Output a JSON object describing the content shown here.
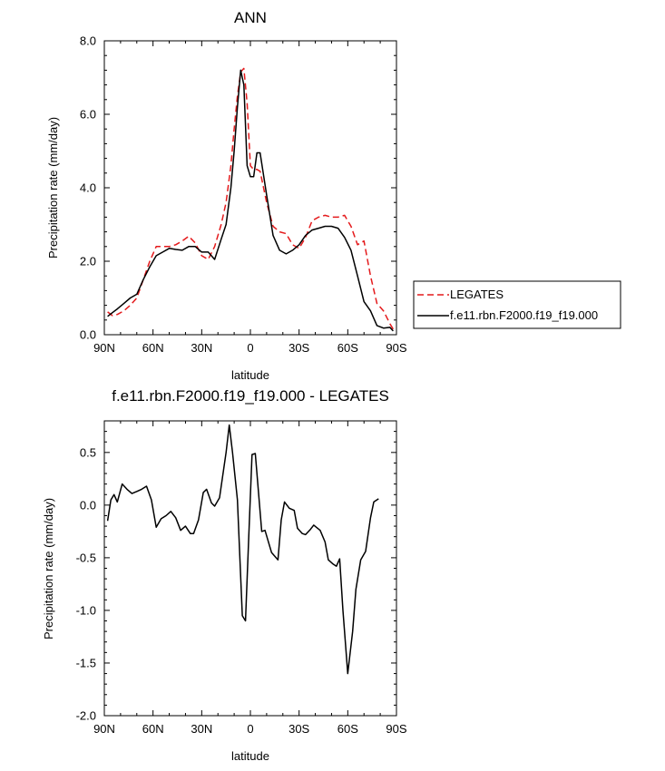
{
  "chart_data": [
    {
      "type": "line",
      "title": "ANN",
      "xlabel": "latitude",
      "ylabel": "Precipitation rate (mm/day)",
      "xlim": [
        90,
        -90
      ],
      "ylim": [
        0.0,
        8.0
      ],
      "x_ticks": [
        90,
        60,
        30,
        0,
        -30,
        -60,
        -90
      ],
      "x_tick_labels": [
        "90N",
        "60N",
        "30N",
        "0",
        "30S",
        "60S",
        "90S"
      ],
      "y_ticks": [
        0.0,
        2.0,
        4.0,
        6.0,
        8.0
      ],
      "y_tick_labels": [
        "0.0",
        "2.0",
        "4.0",
        "6.0",
        "8.0"
      ],
      "legend_position": "right",
      "series": [
        {
          "name": "LEGATES",
          "color": "#e41a1c",
          "dash": "dashed",
          "points": [
            [
              88,
              0.62
            ],
            [
              85,
              0.52
            ],
            [
              82,
              0.55
            ],
            [
              78,
              0.65
            ],
            [
              74,
              0.8
            ],
            [
              70,
              1.0
            ],
            [
              66,
              1.5
            ],
            [
              62,
              2.0
            ],
            [
              58,
              2.4
            ],
            [
              54,
              2.4
            ],
            [
              50,
              2.4
            ],
            [
              46,
              2.45
            ],
            [
              42,
              2.55
            ],
            [
              38,
              2.68
            ],
            [
              34,
              2.5
            ],
            [
              30,
              2.15
            ],
            [
              26,
              2.05
            ],
            [
              22,
              2.4
            ],
            [
              18,
              3.0
            ],
            [
              15,
              3.6
            ],
            [
              12,
              4.6
            ],
            [
              10,
              5.6
            ],
            [
              8,
              6.5
            ],
            [
              6,
              7.15
            ],
            [
              4,
              7.25
            ],
            [
              2,
              6.3
            ],
            [
              0,
              4.6
            ],
            [
              -2,
              4.5
            ],
            [
              -4,
              4.5
            ],
            [
              -6,
              4.45
            ],
            [
              -10,
              3.6
            ],
            [
              -14,
              2.95
            ],
            [
              -18,
              2.8
            ],
            [
              -22,
              2.75
            ],
            [
              -26,
              2.45
            ],
            [
              -30,
              2.35
            ],
            [
              -34,
              2.65
            ],
            [
              -38,
              3.1
            ],
            [
              -42,
              3.2
            ],
            [
              -46,
              3.25
            ],
            [
              -50,
              3.2
            ],
            [
              -54,
              3.2
            ],
            [
              -58,
              3.25
            ],
            [
              -62,
              2.95
            ],
            [
              -66,
              2.45
            ],
            [
              -70,
              2.55
            ],
            [
              -74,
              1.6
            ],
            [
              -78,
              0.85
            ],
            [
              -82,
              0.65
            ],
            [
              -86,
              0.3
            ],
            [
              -88,
              0.15
            ]
          ]
        },
        {
          "name": "f.e11.rbn.F2000.f19_f19.000",
          "color": "#000000",
          "dash": "solid",
          "points": [
            [
              88,
              0.5
            ],
            [
              85,
              0.6
            ],
            [
              82,
              0.7
            ],
            [
              78,
              0.85
            ],
            [
              74,
              1.0
            ],
            [
              70,
              1.1
            ],
            [
              66,
              1.5
            ],
            [
              62,
              1.85
            ],
            [
              58,
              2.15
            ],
            [
              54,
              2.25
            ],
            [
              50,
              2.35
            ],
            [
              46,
              2.32
            ],
            [
              42,
              2.3
            ],
            [
              38,
              2.4
            ],
            [
              34,
              2.4
            ],
            [
              30,
              2.25
            ],
            [
              26,
              2.25
            ],
            [
              22,
              2.05
            ],
            [
              18,
              2.6
            ],
            [
              15,
              3.0
            ],
            [
              12,
              4.0
            ],
            [
              10,
              5.0
            ],
            [
              8,
              6.2
            ],
            [
              6,
              7.2
            ],
            [
              4,
              6.8
            ],
            [
              2,
              4.6
            ],
            [
              0,
              4.3
            ],
            [
              -2,
              4.3
            ],
            [
              -4,
              4.95
            ],
            [
              -6,
              4.95
            ],
            [
              -10,
              3.8
            ],
            [
              -14,
              2.7
            ],
            [
              -18,
              2.3
            ],
            [
              -22,
              2.2
            ],
            [
              -26,
              2.3
            ],
            [
              -30,
              2.45
            ],
            [
              -34,
              2.7
            ],
            [
              -38,
              2.85
            ],
            [
              -42,
              2.9
            ],
            [
              -46,
              2.95
            ],
            [
              -50,
              2.95
            ],
            [
              -54,
              2.9
            ],
            [
              -58,
              2.65
            ],
            [
              -62,
              2.3
            ],
            [
              -66,
              1.6
            ],
            [
              -70,
              0.9
            ],
            [
              -74,
              0.65
            ],
            [
              -78,
              0.25
            ],
            [
              -82,
              0.18
            ],
            [
              -86,
              0.2
            ],
            [
              -88,
              0.1
            ]
          ]
        }
      ]
    },
    {
      "type": "line",
      "title": "f.e11.rbn.F2000.f19_f19.000 - LEGATES",
      "xlabel": "latitude",
      "ylabel": "Precipitation rate (mm/day)",
      "xlim": [
        90,
        -90
      ],
      "ylim": [
        -2.0,
        0.8
      ],
      "x_ticks": [
        90,
        60,
        30,
        0,
        -30,
        -60,
        -90
      ],
      "x_tick_labels": [
        "90N",
        "60N",
        "30N",
        "0",
        "30S",
        "60S",
        "90S"
      ],
      "y_ticks": [
        -2.0,
        -1.5,
        -1.0,
        -0.5,
        0.0,
        0.5
      ],
      "y_tick_labels": [
        "-2.0",
        "-1.5",
        "-1.0",
        "-0.5",
        "0.0",
        "0.5"
      ],
      "series": [
        {
          "color": "#000000",
          "dash": "solid",
          "points": [
            [
              88,
              -0.15
            ],
            [
              86,
              0.05
            ],
            [
              84,
              0.1
            ],
            [
              82,
              0.03
            ],
            [
              79,
              0.2
            ],
            [
              76,
              0.15
            ],
            [
              73,
              0.11
            ],
            [
              70,
              0.13
            ],
            [
              67,
              0.15
            ],
            [
              64,
              0.18
            ],
            [
              61,
              0.05
            ],
            [
              58,
              -0.21
            ],
            [
              55,
              -0.13
            ],
            [
              52,
              -0.1
            ],
            [
              49,
              -0.06
            ],
            [
              46,
              -0.12
            ],
            [
              43,
              -0.24
            ],
            [
              40,
              -0.2
            ],
            [
              37,
              -0.27
            ],
            [
              35,
              -0.27
            ],
            [
              32,
              -0.14
            ],
            [
              29,
              0.12
            ],
            [
              27,
              0.15
            ],
            [
              24,
              0.02
            ],
            [
              22,
              -0.01
            ],
            [
              19,
              0.07
            ],
            [
              15,
              0.5
            ],
            [
              13,
              0.76
            ],
            [
              11,
              0.5
            ],
            [
              8,
              0.05
            ],
            [
              5,
              -1.05
            ],
            [
              3,
              -1.1
            ],
            [
              1,
              -0.3
            ],
            [
              -1,
              0.48
            ],
            [
              -3,
              0.49
            ],
            [
              -7,
              -0.25
            ],
            [
              -9,
              -0.24
            ],
            [
              -13,
              -0.45
            ],
            [
              -17,
              -0.52
            ],
            [
              -19,
              -0.14
            ],
            [
              -21,
              0.03
            ],
            [
              -24,
              -0.03
            ],
            [
              -27,
              -0.05
            ],
            [
              -29,
              -0.22
            ],
            [
              -32,
              -0.27
            ],
            [
              -34,
              -0.28
            ],
            [
              -37,
              -0.23
            ],
            [
              -39,
              -0.19
            ],
            [
              -43,
              -0.24
            ],
            [
              -46,
              -0.35
            ],
            [
              -48,
              -0.52
            ],
            [
              -51,
              -0.56
            ],
            [
              -53,
              -0.58
            ],
            [
              -55,
              -0.51
            ],
            [
              -57,
              -1.0
            ],
            [
              -60,
              -1.6
            ],
            [
              -63,
              -1.2
            ],
            [
              -65,
              -0.8
            ],
            [
              -68,
              -0.52
            ],
            [
              -71,
              -0.44
            ],
            [
              -74,
              -0.12
            ],
            [
              -76,
              0.03
            ],
            [
              -79,
              0.06
            ]
          ]
        }
      ]
    }
  ]
}
